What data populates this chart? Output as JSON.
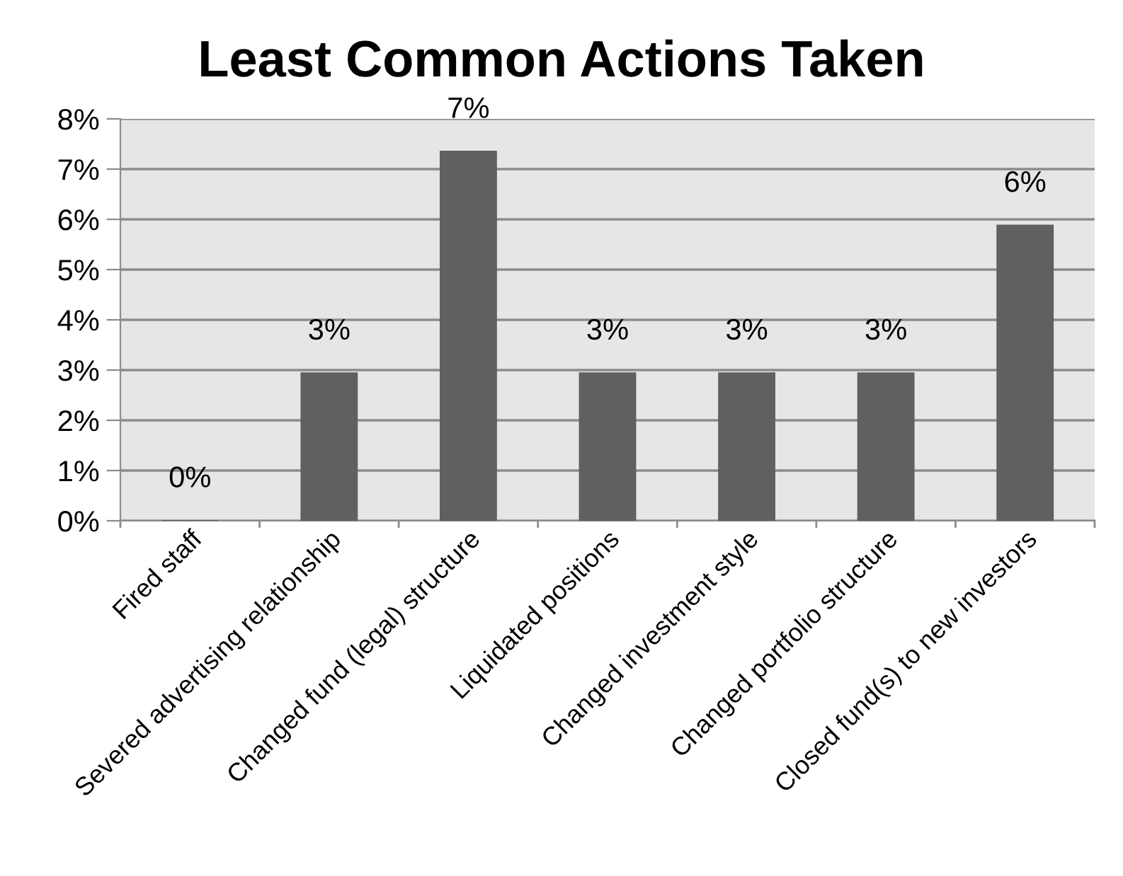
{
  "chart_data": {
    "type": "bar",
    "title": "Least Common Actions Taken",
    "categories": [
      "Fired staff",
      "Severed advertising relationship",
      "Changed fund (legal) structure",
      "Liquidated positions",
      "Changed investment style",
      "Changed portfolio structure",
      "Closed fund(s) to new investors"
    ],
    "values": [
      0,
      2.94,
      7.35,
      2.94,
      2.94,
      2.94,
      5.88
    ],
    "value_labels": [
      "0%",
      "3%",
      "7%",
      "3%",
      "3%",
      "3%",
      "6%"
    ],
    "color": "#606060",
    "ylim": [
      0,
      8
    ],
    "yticks": [
      {
        "value": 0,
        "label": "0%"
      },
      {
        "value": 1,
        "label": "1%"
      },
      {
        "value": 2,
        "label": "2%"
      },
      {
        "value": 3,
        "label": "3%"
      },
      {
        "value": 4,
        "label": "4%"
      },
      {
        "value": 5,
        "label": "5%"
      },
      {
        "value": 6,
        "label": "6%"
      },
      {
        "value": 7,
        "label": "7%"
      },
      {
        "value": 8,
        "label": "8%"
      }
    ],
    "grid": "y",
    "legend": false
  }
}
